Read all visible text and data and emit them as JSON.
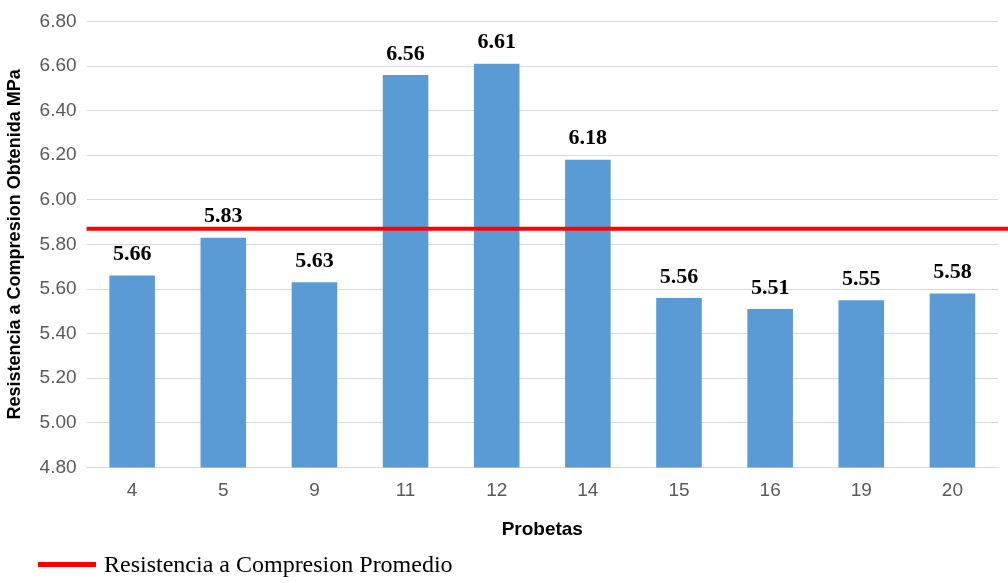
{
  "chart_data": {
    "type": "bar",
    "xlabel": "Probetas",
    "ylabel": "Resistencia a Compresion Obtenida MPa",
    "categories": [
      "4",
      "5",
      "9",
      "11",
      "12",
      "14",
      "15",
      "16",
      "19",
      "20"
    ],
    "values": [
      5.66,
      5.83,
      5.63,
      6.56,
      6.61,
      6.18,
      5.56,
      5.51,
      5.55,
      5.58
    ],
    "color": "#5b9bd5",
    "ylim": [
      4.8,
      6.8
    ],
    "yticks": [
      {
        "value": 4.8,
        "label": "4.80"
      },
      {
        "value": 5.0,
        "label": "5.00"
      },
      {
        "value": 5.2,
        "label": "5.20"
      },
      {
        "value": 5.4,
        "label": "5.40"
      },
      {
        "value": 5.6,
        "label": "5.60"
      },
      {
        "value": 5.8,
        "label": "5.80"
      },
      {
        "value": 6.0,
        "label": "6.00"
      },
      {
        "value": 6.2,
        "label": "6.20"
      },
      {
        "value": 6.4,
        "label": "6.40"
      },
      {
        "value": 6.6,
        "label": "6.60"
      },
      {
        "value": 6.8,
        "label": "6.80"
      }
    ],
    "grid": "y",
    "data_labels": true,
    "legend": "bottom left",
    "ref_lines": [
      {
        "axis": "y",
        "value": 5.87,
        "label": "Resistencia a Compresion Promedio",
        "color": "#ff0000"
      }
    ]
  }
}
